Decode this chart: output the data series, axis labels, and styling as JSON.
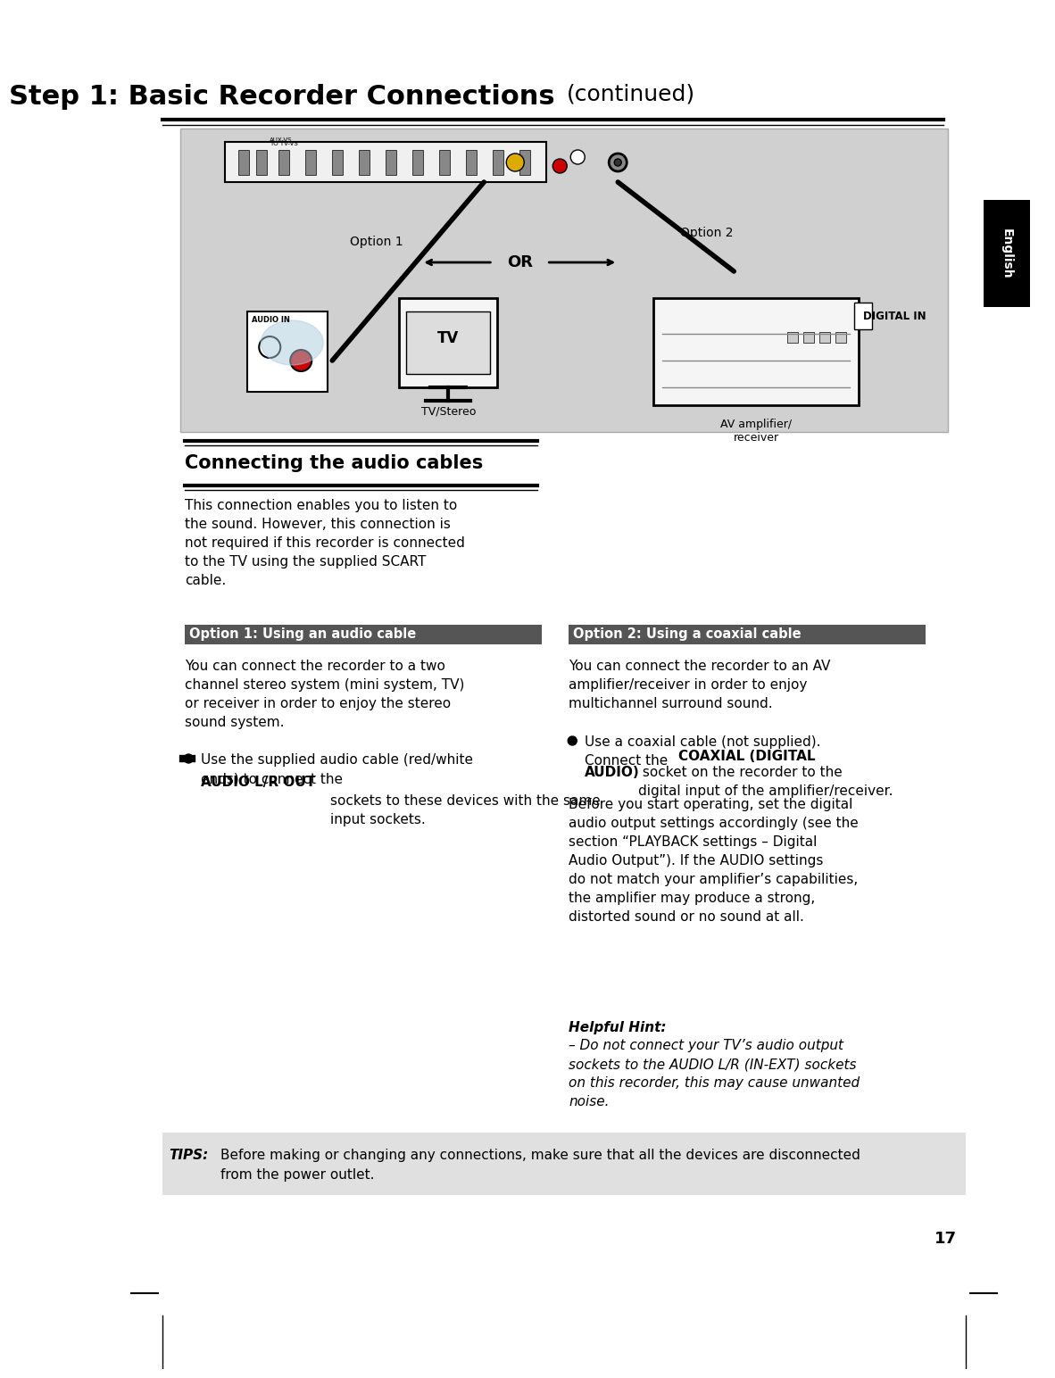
{
  "page_bg": "#ffffff",
  "title_bold": "Step 1: Basic Recorder Connections ",
  "title_normal": "(continued)",
  "diagram_bg": "#d0d0d0",
  "english_tab_bg": "#000000",
  "english_tab_text": "English",
  "section1_title": "Connecting the audio cables",
  "section1_title_color": "#000000",
  "option1_header": "Option 1: Using an audio cable",
  "option1_header_bg": "#555555",
  "option1_header_color": "#ffffff",
  "option2_header": "Option 2: Using a coaxial cable",
  "option2_header_bg": "#555555",
  "option2_header_color": "#ffffff",
  "section1_body": "This connection enables you to listen to\nthe sound. However, this connection is\nnot required if this recorder is connected\nto the TV using the supplied SCART\ncable.",
  "option1_body": "You can connect the recorder to a two\nchannel stereo system (mini system, TV)\nor receiver in order to enjoy the stereo\nsound system.",
  "option1_bullet_pre": "Use the supplied audio cable (red/white\nends) to connect the ",
  "option1_bullet_bold": "AUDIO L/R OUT",
  "option1_bullet_post": "\nsockets to these devices with the same\ninput sockets.",
  "option2_body": "You can connect the recorder to an AV\namplifier/receiver in order to enjoy\nmultichannel surround sound.",
  "option2_bullet_pre": "Use a coaxial cable (not supplied).\nConnect the ",
  "option2_bullet_bold": "COAXIAL (DIGITAL\nAUDIO)",
  "option2_bullet_post": " socket on the recorder to the\ndigital input of the amplifier/receiver.",
  "option2_body2": "Before you start operating, set the digital\naudio output settings accordingly (see the\nsection “PLAYBACK settings – Digital\nAudio Output”). If the AUDIO settings\ndo not match your amplifier’s capabilities,\nthe amplifier may produce a strong,\ndistorted sound or no sound at all.",
  "helpful_hint_title": "Helpful Hint:",
  "helpful_hint_body": "– Do not connect your TV’s audio output\nsockets to the AUDIO L/R (IN-EXT) sockets\non this recorder, this may cause unwanted\nnoise.",
  "tips_label": "TIPS:",
  "tips_body": "Before making or changing any connections, make sure that all the devices are disconnected\nfrom the power outlet.",
  "tips_bg": "#e0e0e0",
  "page_number": "17",
  "diagram_option1_label": "Option 1",
  "diagram_option2_label": "Option 2",
  "diagram_or": "OR",
  "diagram_digital_in": "DIGITAL IN",
  "diagram_tv_stereo": "TV/Stereo",
  "diagram_av": "AV amplifier/\nreceiver",
  "diagram_tv": "TV",
  "diagram_audio_in": "AUDIO IN"
}
